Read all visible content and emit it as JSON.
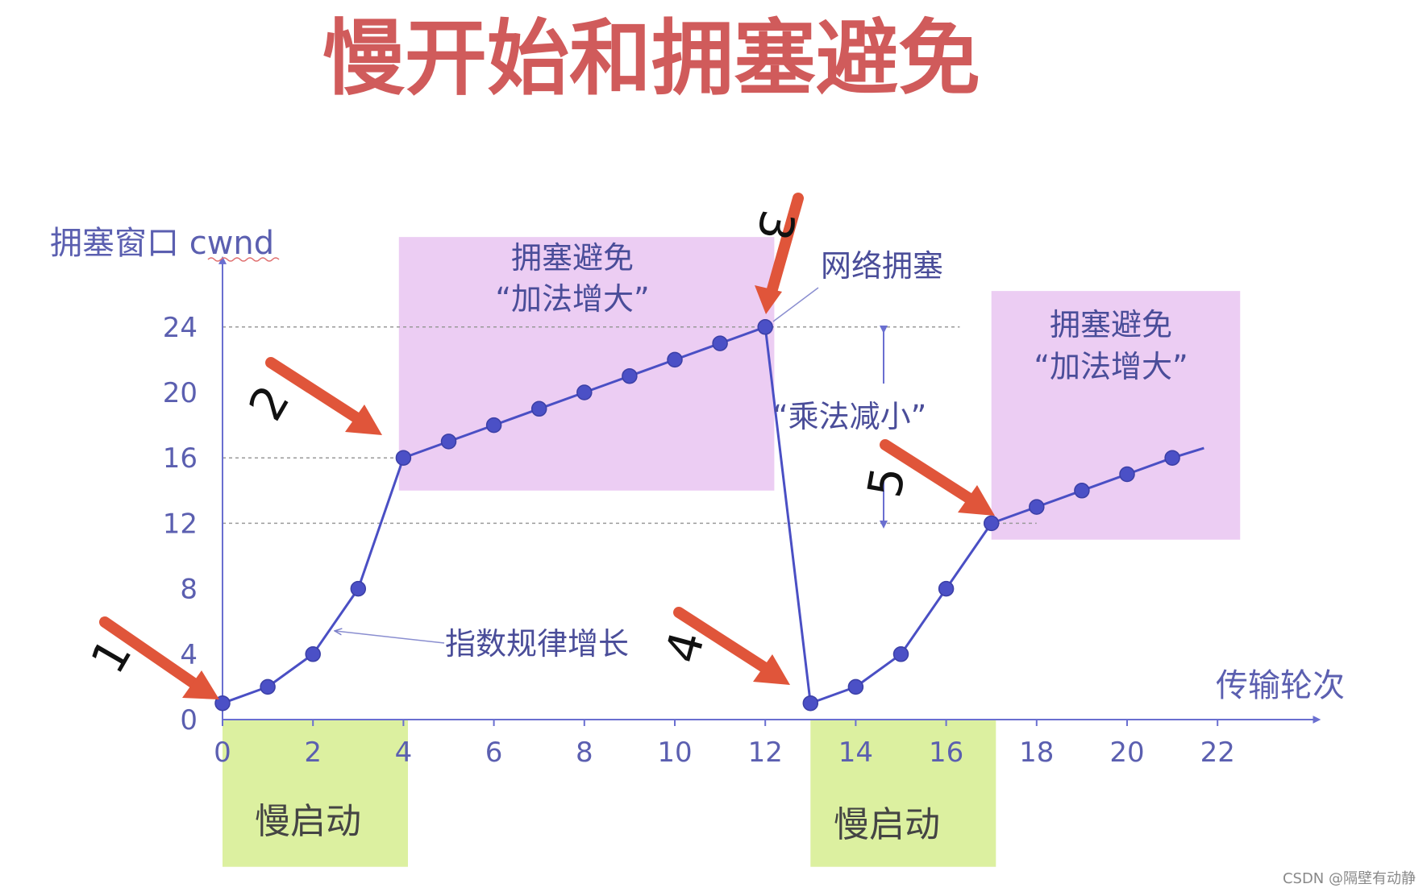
{
  "title": "慢开始和拥塞避免",
  "watermark": "CSDN @隔壁有动静",
  "chart_data": {
    "type": "line",
    "ylabel": "拥塞窗口 cwnd",
    "xlabel": "传输轮次",
    "x_ticks": [
      "0",
      "2",
      "4",
      "6",
      "8",
      "10",
      "12",
      "14",
      "16",
      "18",
      "20",
      "22"
    ],
    "y_ticks": [
      "0",
      "4",
      "8",
      "12",
      "16",
      "20",
      "24"
    ],
    "xlim": [
      0,
      23
    ],
    "ylim": [
      0,
      27
    ],
    "series": [
      {
        "x": [
          0,
          1,
          2,
          3,
          4,
          5,
          6,
          7,
          8,
          9,
          10,
          11,
          12,
          13,
          14,
          15,
          16,
          17,
          18,
          19,
          20,
          21,
          21.7
        ],
        "y": [
          1,
          2,
          4,
          8,
          16,
          17,
          18,
          19,
          20,
          21,
          22,
          23,
          24,
          1,
          2,
          4,
          8,
          12,
          13,
          14,
          15,
          16,
          16.6
        ],
        "markers": [
          true,
          true,
          true,
          true,
          true,
          true,
          true,
          true,
          true,
          true,
          true,
          true,
          true,
          true,
          true,
          true,
          true,
          true,
          true,
          true,
          true,
          true,
          false
        ]
      }
    ],
    "reference_lines": [
      {
        "y": 24,
        "x_from": 0,
        "x_to": 16.3
      },
      {
        "y": 16,
        "x_from": 0,
        "x_to": 4
      },
      {
        "y": 12,
        "x_from": 0,
        "x_to": 18
      }
    ],
    "regions": [
      {
        "kind": "congestion-avoidance",
        "x_from": 3.9,
        "x_to": 12.2,
        "y_from": 14,
        "y_to": 29.5,
        "color": "#eccdf3"
      },
      {
        "kind": "congestion-avoidance",
        "x_from": 17,
        "x_to": 22.5,
        "y_from": 11,
        "y_to": 26.2,
        "color": "#eccdf3"
      },
      {
        "kind": "slow-start",
        "x_from": 0,
        "x_to": 4.1,
        "y_from": -9,
        "y_to": 0,
        "color": "#dcf0a0"
      },
      {
        "kind": "slow-start",
        "x_from": 13,
        "x_to": 17.1,
        "y_from": -9,
        "y_to": 0,
        "color": "#dcf0a0"
      }
    ],
    "annotations": {
      "ca_box_1_line1": "拥塞避免",
      "ca_box_1_line2": "“加法增大”",
      "ca_box_2_line1": "拥塞避免",
      "ca_box_2_line2": "“加法增大”",
      "network_congestion": "网络拥塞",
      "multiplicative_decrease": "“乘法减小”",
      "exponential_growth": "指数规律增长",
      "slow_start_1": "慢启动",
      "slow_start_2": "慢启动"
    },
    "step_labels": [
      "1",
      "2",
      "3",
      "4",
      "5"
    ],
    "colors": {
      "line": "#4a4fc4",
      "marker": "#4b50c6",
      "arrow": "#e0553a",
      "axis": "#6a6fd0"
    }
  }
}
